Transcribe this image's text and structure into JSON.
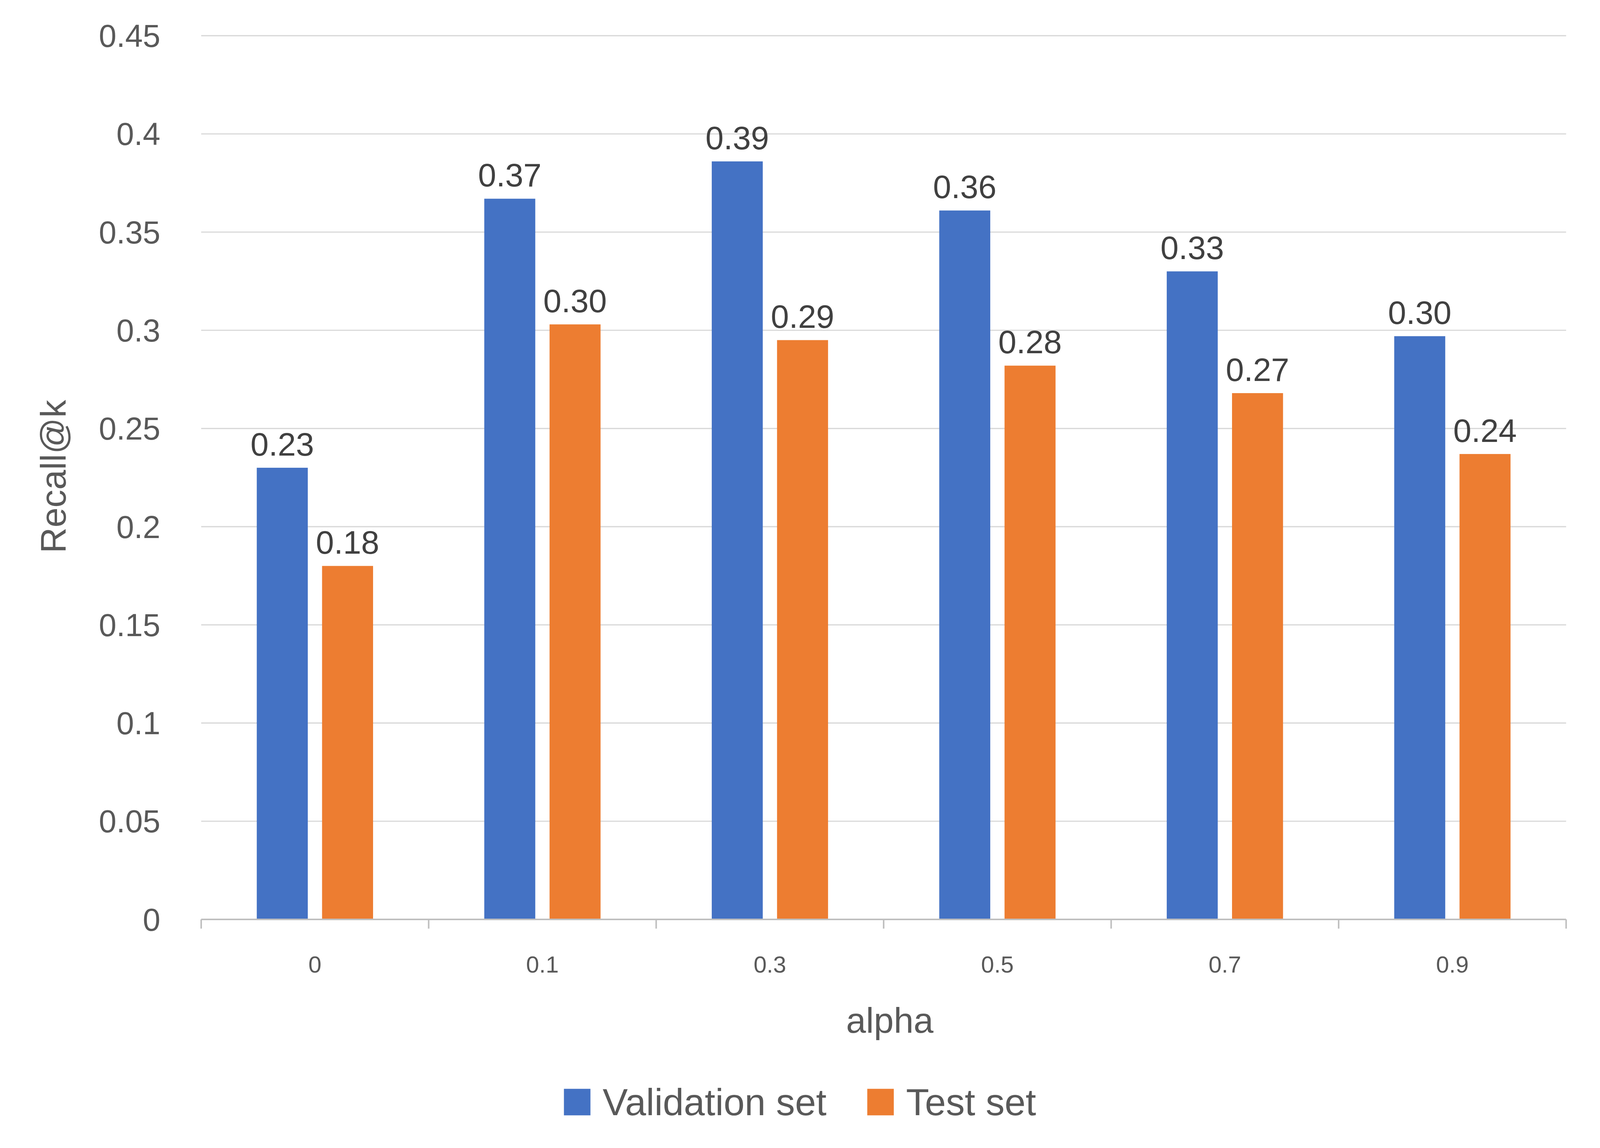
{
  "chart_data": {
    "type": "bar",
    "x_label": "alpha",
    "y_label": "Recall@k",
    "categories": [
      "0",
      "0.1",
      "0.3",
      "0.5",
      "0.7",
      "0.9"
    ],
    "series": [
      {
        "name": "Validation set",
        "color": "#4472c4",
        "values": [
          0.23,
          0.367,
          0.386,
          0.361,
          0.33,
          0.297
        ],
        "value_labels": [
          "0.23",
          "0.37",
          "0.39",
          "0.36",
          "0.33",
          "0.30"
        ]
      },
      {
        "name": "Test set",
        "color": "#ed7d31",
        "values": [
          0.18,
          0.303,
          0.295,
          0.282,
          0.268,
          0.237
        ],
        "value_labels": [
          "0.18",
          "0.30",
          "0.29",
          "0.28",
          "0.27",
          "0.24"
        ]
      }
    ],
    "ylim": [
      0,
      0.45
    ],
    "yticks": [
      0,
      0.05,
      0.1,
      0.15,
      0.2,
      0.25,
      0.3,
      0.35,
      0.4,
      0.45
    ],
    "grid": true,
    "data_labels": true,
    "legend": "bottom"
  }
}
